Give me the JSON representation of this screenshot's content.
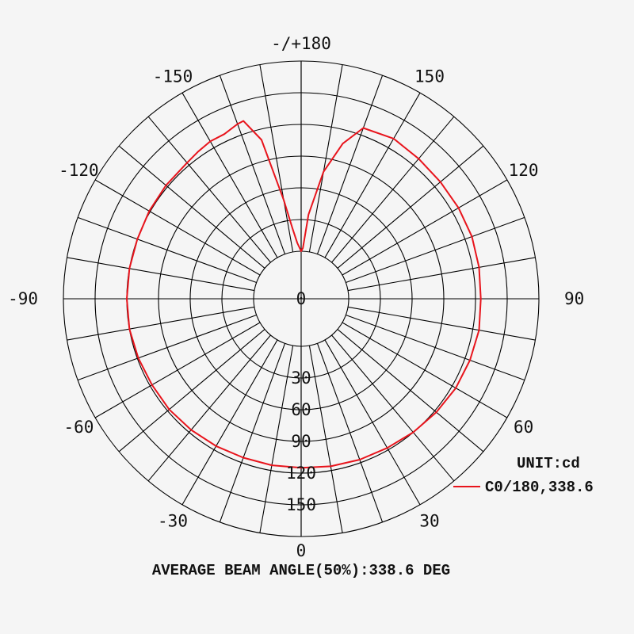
{
  "chart_data": {
    "type": "polar",
    "angle_labels": [
      {
        "angle": 180,
        "text": "-/+180"
      },
      {
        "angle": 150,
        "text": "150"
      },
      {
        "angle": 120,
        "text": "120"
      },
      {
        "angle": 90,
        "text": "90"
      },
      {
        "angle": 60,
        "text": "60"
      },
      {
        "angle": 30,
        "text": "30"
      },
      {
        "angle": 0,
        "text": "0"
      },
      {
        "angle": -30,
        "text": "-30"
      },
      {
        "angle": -60,
        "text": "-60"
      },
      {
        "angle": -90,
        "text": "-90"
      },
      {
        "angle": -120,
        "text": "-120"
      },
      {
        "angle": -150,
        "text": "-150"
      }
    ],
    "radial_ticks": [
      0,
      30,
      60,
      90,
      120,
      150
    ],
    "rmax": 180,
    "radial_gridlines": [
      30,
      60,
      90,
      120,
      150,
      180
    ],
    "angle_step": 10,
    "unit_label": "UNIT:cd",
    "series": [
      {
        "name": "C0/180,338.6",
        "color": "#e8141c",
        "points": [
          [
            0,
            115
          ],
          [
            10,
            116
          ],
          [
            20,
            117
          ],
          [
            30,
            118
          ],
          [
            40,
            120
          ],
          [
            50,
            122
          ],
          [
            60,
            124
          ],
          [
            70,
            125
          ],
          [
            80,
            126
          ],
          [
            90,
            125
          ],
          [
            100,
            126
          ],
          [
            110,
            127
          ],
          [
            120,
            127
          ],
          [
            130,
            127
          ],
          [
            140,
            128
          ],
          [
            150,
            130
          ],
          [
            160,
            127
          ],
          [
            165,
            107
          ],
          [
            170,
            77
          ],
          [
            175,
            35
          ],
          [
            178,
            3
          ],
          [
            180,
            0
          ],
          [
            -176,
            8
          ],
          [
            -173,
            22
          ],
          [
            -170,
            50
          ],
          [
            -166,
            110
          ],
          [
            -162,
            132
          ],
          [
            -160,
            131
          ],
          [
            -155,
            127
          ],
          [
            -150,
            127
          ],
          [
            -145,
            125
          ],
          [
            -140,
            123
          ],
          [
            -130,
            122
          ],
          [
            -120,
            121
          ],
          [
            -110,
            120
          ],
          [
            -100,
            120
          ],
          [
            -90,
            120
          ],
          [
            -80,
            120
          ],
          [
            -70,
            119
          ],
          [
            -60,
            118
          ],
          [
            -50,
            118
          ],
          [
            -40,
            117
          ],
          [
            -30,
            116
          ],
          [
            -20,
            115
          ],
          [
            -10,
            115
          ],
          [
            0,
            115
          ]
        ]
      }
    ]
  },
  "footer": {
    "beam_angle_text": "AVERAGE BEAM ANGLE(50%):338.6 DEG"
  }
}
